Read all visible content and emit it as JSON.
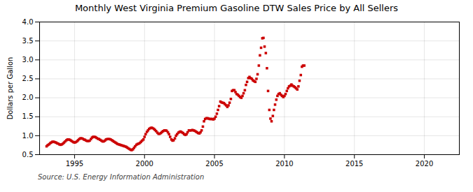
{
  "chart_data": {
    "type": "scatter",
    "title": "Monthly West Virginia Premium Gasoline DTW Sales Price by All Sellers",
    "ylabel": "Dollars per Gallon",
    "source": "Source: U.S. Energy Information Administration",
    "color": "#cc0000",
    "marker": "square",
    "grid": true,
    "xlim": [
      1992.5,
      2022.5
    ],
    "ylim": [
      0.5,
      4.0
    ],
    "xticks": [
      1995,
      2000,
      2005,
      2010,
      2015,
      2020
    ],
    "yticks": [
      0.5,
      {
        "value": 1.0,
        "label": "1.0"
      },
      1.5,
      {
        "value": 2.0,
        "label": "2.0"
      },
      2.5,
      {
        "value": 3.0,
        "label": "3.0"
      },
      3.5,
      {
        "value": 4.0,
        "label": "4.0"
      }
    ],
    "x": [
      1993.0,
      1993.08,
      1993.17,
      1993.25,
      1993.33,
      1993.42,
      1993.5,
      1993.58,
      1993.67,
      1993.75,
      1993.83,
      1993.92,
      1994.0,
      1994.08,
      1994.17,
      1994.25,
      1994.33,
      1994.42,
      1994.5,
      1994.58,
      1994.67,
      1994.75,
      1994.83,
      1994.92,
      1995.0,
      1995.08,
      1995.17,
      1995.25,
      1995.33,
      1995.42,
      1995.5,
      1995.58,
      1995.67,
      1995.75,
      1995.83,
      1995.92,
      1996.0,
      1996.08,
      1996.17,
      1996.25,
      1996.33,
      1996.42,
      1996.5,
      1996.58,
      1996.67,
      1996.75,
      1996.83,
      1996.92,
      1997.0,
      1997.08,
      1997.17,
      1997.25,
      1997.33,
      1997.42,
      1997.5,
      1997.58,
      1997.67,
      1997.75,
      1997.83,
      1997.92,
      1998.0,
      1998.08,
      1998.17,
      1998.25,
      1998.33,
      1998.42,
      1998.5,
      1998.58,
      1998.67,
      1998.75,
      1998.83,
      1998.92,
      1999.0,
      1999.08,
      1999.17,
      1999.25,
      1999.33,
      1999.42,
      1999.5,
      1999.58,
      1999.67,
      1999.75,
      1999.83,
      1999.92,
      2000.0,
      2000.08,
      2000.17,
      2000.25,
      2000.33,
      2000.42,
      2000.5,
      2000.58,
      2000.67,
      2000.75,
      2000.83,
      2000.92,
      2001.0,
      2001.08,
      2001.17,
      2001.25,
      2001.33,
      2001.42,
      2001.5,
      2001.58,
      2001.67,
      2001.75,
      2001.83,
      2001.92,
      2002.0,
      2002.08,
      2002.17,
      2002.25,
      2002.33,
      2002.42,
      2002.5,
      2002.58,
      2002.67,
      2002.75,
      2002.83,
      2002.92,
      2003.0,
      2003.08,
      2003.17,
      2003.25,
      2003.33,
      2003.42,
      2003.5,
      2003.58,
      2003.67,
      2003.75,
      2003.83,
      2003.92,
      2004.0,
      2004.08,
      2004.17,
      2004.25,
      2004.33,
      2004.42,
      2004.5,
      2004.58,
      2004.67,
      2004.75,
      2004.83,
      2004.92,
      2005.0,
      2005.08,
      2005.17,
      2005.25,
      2005.33,
      2005.42,
      2005.5,
      2005.58,
      2005.67,
      2005.75,
      2005.83,
      2005.92,
      2006.0,
      2006.08,
      2006.17,
      2006.25,
      2006.33,
      2006.42,
      2006.5,
      2006.58,
      2006.67,
      2006.75,
      2006.83,
      2006.92,
      2007.0,
      2007.08,
      2007.17,
      2007.25,
      2007.33,
      2007.42,
      2007.5,
      2007.58,
      2007.67,
      2007.75,
      2007.83,
      2007.92,
      2008.0,
      2008.08,
      2008.17,
      2008.25,
      2008.33,
      2008.42,
      2008.5,
      2008.58,
      2008.67,
      2008.75,
      2008.83,
      2008.92,
      2009.0,
      2009.08,
      2009.17,
      2009.25,
      2009.33,
      2009.42,
      2009.5,
      2009.58,
      2009.67,
      2009.75,
      2009.83,
      2009.92,
      2010.0,
      2010.08,
      2010.17,
      2010.25,
      2010.33,
      2010.42,
      2010.5,
      2010.58,
      2010.67,
      2010.75,
      2010.83,
      2010.92,
      2011.0,
      2011.08,
      2011.17,
      2011.25,
      2011.33,
      2011.42
    ],
    "values": [
      0.72,
      0.75,
      0.77,
      0.8,
      0.82,
      0.84,
      0.84,
      0.83,
      0.82,
      0.8,
      0.79,
      0.77,
      0.76,
      0.77,
      0.79,
      0.82,
      0.85,
      0.88,
      0.9,
      0.9,
      0.89,
      0.87,
      0.85,
      0.83,
      0.82,
      0.83,
      0.85,
      0.88,
      0.91,
      0.93,
      0.93,
      0.92,
      0.9,
      0.89,
      0.87,
      0.86,
      0.86,
      0.87,
      0.91,
      0.95,
      0.97,
      0.97,
      0.96,
      0.94,
      0.92,
      0.91,
      0.89,
      0.87,
      0.85,
      0.85,
      0.87,
      0.9,
      0.91,
      0.91,
      0.91,
      0.9,
      0.88,
      0.86,
      0.84,
      0.82,
      0.8,
      0.78,
      0.77,
      0.76,
      0.75,
      0.74,
      0.73,
      0.72,
      0.71,
      0.69,
      0.67,
      0.65,
      0.63,
      0.62,
      0.64,
      0.68,
      0.72,
      0.76,
      0.78,
      0.79,
      0.81,
      0.84,
      0.87,
      0.9,
      0.97,
      1.04,
      1.1,
      1.14,
      1.18,
      1.2,
      1.21,
      1.2,
      1.18,
      1.15,
      1.12,
      1.08,
      1.05,
      1.05,
      1.07,
      1.1,
      1.12,
      1.14,
      1.14,
      1.13,
      1.09,
      1.04,
      0.97,
      0.9,
      0.87,
      0.88,
      0.93,
      1.0,
      1.04,
      1.08,
      1.1,
      1.11,
      1.09,
      1.07,
      1.04,
      1.02,
      1.04,
      1.09,
      1.14,
      1.14,
      1.14,
      1.15,
      1.14,
      1.13,
      1.11,
      1.09,
      1.07,
      1.06,
      1.09,
      1.14,
      1.24,
      1.38,
      1.44,
      1.46,
      1.46,
      1.45,
      1.44,
      1.44,
      1.44,
      1.43,
      1.45,
      1.5,
      1.58,
      1.68,
      1.78,
      1.9,
      1.88,
      1.87,
      1.86,
      1.83,
      1.8,
      1.76,
      1.8,
      1.87,
      1.97,
      2.18,
      2.2,
      2.2,
      2.15,
      2.1,
      2.08,
      2.05,
      2.02,
      2.0,
      2.05,
      2.12,
      2.2,
      2.34,
      2.42,
      2.52,
      2.55,
      2.52,
      2.5,
      2.46,
      2.44,
      2.42,
      2.5,
      2.62,
      2.85,
      3.12,
      3.32,
      3.57,
      3.58,
      3.35,
      3.18,
      2.78,
      2.18,
      1.68,
      1.45,
      1.38,
      1.52,
      1.68,
      1.82,
      1.95,
      2.05,
      2.1,
      2.12,
      2.08,
      2.05,
      2.02,
      2.05,
      2.1,
      2.18,
      2.25,
      2.3,
      2.32,
      2.35,
      2.32,
      2.3,
      2.28,
      2.25,
      2.22,
      2.3,
      2.45,
      2.6,
      2.82,
      2.85,
      2.85
    ]
  }
}
